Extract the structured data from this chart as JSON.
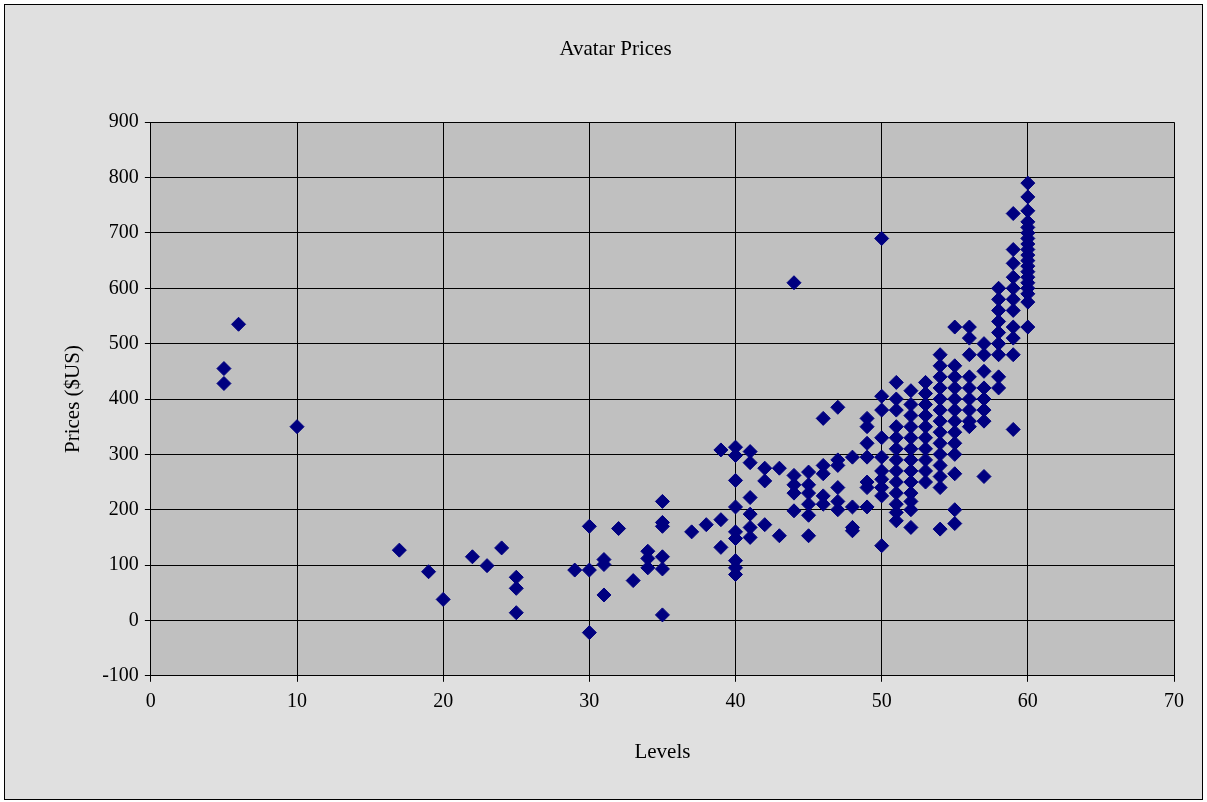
{
  "chart_data": {
    "type": "scatter",
    "title": "Avatar Prices",
    "xlabel": "Levels",
    "ylabel": "Prices ($US)",
    "marker": "diamond",
    "grid": true,
    "legend": false,
    "xlim": [
      0,
      70
    ],
    "xticks": [
      0,
      10,
      20,
      30,
      40,
      50,
      60,
      70
    ],
    "ylim": [
      -100,
      900
    ],
    "yticks": [
      -100,
      0,
      100,
      200,
      300,
      400,
      500,
      600,
      700,
      800,
      900
    ],
    "series": [
      {
        "color": "#000080",
        "x": [
          5,
          5,
          6,
          10,
          17,
          19,
          20,
          22,
          23,
          24,
          25,
          25,
          25,
          29,
          30,
          30,
          30,
          31,
          31,
          31,
          32,
          33,
          34,
          34,
          34,
          35,
          35,
          35,
          35,
          35,
          35,
          37,
          38,
          39,
          39,
          39,
          40,
          40,
          40,
          40,
          40,
          40,
          40,
          40,
          40,
          41,
          41,
          41,
          41,
          41,
          41,
          42,
          42,
          42,
          43,
          43,
          44,
          44,
          44,
          44,
          44,
          45,
          45,
          45,
          45,
          45,
          45,
          46,
          46,
          46,
          46,
          46,
          47,
          47,
          47,
          47,
          47,
          47,
          48,
          48,
          48,
          48,
          49,
          49,
          49,
          49,
          49,
          49,
          49,
          50,
          50,
          50,
          50,
          50,
          50,
          50,
          50,
          50,
          50,
          51,
          51,
          51,
          51,
          51,
          51,
          51,
          51,
          51,
          51,
          51,
          51,
          51,
          52,
          52,
          52,
          52,
          52,
          52,
          52,
          52,
          52,
          52,
          52,
          52,
          52,
          53,
          53,
          53,
          53,
          53,
          53,
          53,
          53,
          53,
          53,
          54,
          54,
          54,
          54,
          54,
          54,
          54,
          54,
          54,
          54,
          54,
          54,
          54,
          54,
          55,
          55,
          55,
          55,
          55,
          55,
          55,
          55,
          55,
          55,
          55,
          55,
          55,
          56,
          56,
          56,
          56,
          56,
          56,
          56,
          56,
          56,
          57,
          57,
          57,
          57,
          57,
          57,
          57,
          57,
          58,
          58,
          58,
          58,
          58,
          58,
          58,
          58,
          58,
          59,
          59,
          59,
          59,
          59,
          59,
          59,
          59,
          59,
          59,
          59,
          60,
          60,
          60,
          60,
          60,
          60,
          60,
          60,
          60,
          60,
          60,
          60,
          60,
          60,
          60,
          60,
          60,
          60,
          60
        ],
        "values": [
          455,
          428,
          535,
          350,
          127,
          88,
          38,
          115,
          99,
          131,
          78,
          58,
          14,
          91,
          170,
          91,
          -22,
          110,
          101,
          46,
          166,
          72,
          125,
          112,
          95,
          215,
          177,
          170,
          115,
          93,
          10,
          160,
          173,
          308,
          182,
          132,
          313,
          298,
          253,
          205,
          160,
          148,
          108,
          95,
          83,
          305,
          285,
          222,
          192,
          168,
          150,
          275,
          252,
          173,
          275,
          153,
          610,
          262,
          245,
          230,
          198,
          268,
          245,
          230,
          210,
          190,
          153,
          365,
          280,
          265,
          225,
          210,
          385,
          290,
          280,
          240,
          215,
          200,
          295,
          205,
          168,
          162,
          365,
          350,
          320,
          295,
          250,
          240,
          205,
          690,
          405,
          380,
          330,
          295,
          270,
          255,
          240,
          225,
          135,
          430,
          400,
          380,
          350,
          330,
          310,
          290,
          270,
          250,
          230,
          210,
          195,
          180,
          415,
          390,
          370,
          350,
          330,
          310,
          290,
          270,
          250,
          230,
          215,
          200,
          168,
          430,
          410,
          390,
          370,
          350,
          330,
          310,
          290,
          270,
          250,
          480,
          460,
          440,
          420,
          400,
          380,
          360,
          340,
          320,
          300,
          280,
          260,
          240,
          165,
          530,
          460,
          440,
          420,
          400,
          380,
          360,
          340,
          320,
          300,
          265,
          200,
          175,
          530,
          510,
          480,
          440,
          420,
          400,
          380,
          360,
          350,
          500,
          480,
          450,
          420,
          400,
          380,
          360,
          260,
          600,
          580,
          560,
          540,
          520,
          500,
          480,
          440,
          420,
          735,
          670,
          645,
          620,
          600,
          580,
          560,
          530,
          510,
          480,
          345,
          790,
          765,
          740,
          720,
          710,
          700,
          690,
          680,
          670,
          660,
          650,
          640,
          630,
          620,
          610,
          600,
          590,
          575,
          530
        ]
      }
    ]
  }
}
